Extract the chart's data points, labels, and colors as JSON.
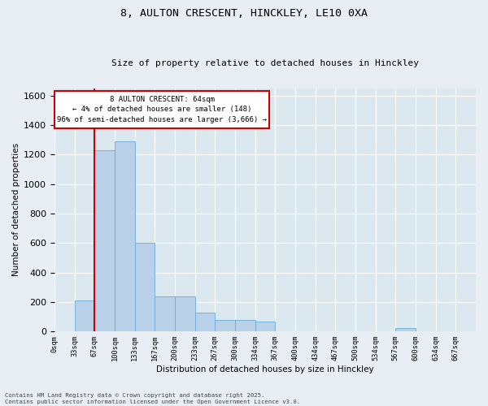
{
  "title_line1": "8, AULTON CRESCENT, HINCKLEY, LE10 0XA",
  "title_line2": "Size of property relative to detached houses in Hinckley",
  "xlabel": "Distribution of detached houses by size in Hinckley",
  "ylabel": "Number of detached properties",
  "bar_color": "#b8d0e8",
  "bar_edge_color": "#6aaad4",
  "bg_color": "#dce8f0",
  "grid_color": "#ffffff",
  "annotation_box_color": "#cc0000",
  "vline_color": "#cc0000",
  "vline_x": 2,
  "annotation_text": "8 AULTON CRESCENT: 64sqm\n← 4% of detached houses are smaller (148)\n96% of semi-detached houses are larger (3,666) →",
  "footnote": "Contains HM Land Registry data © Crown copyright and database right 2025.\nContains public sector information licensed under the Open Government Licence v3.0.",
  "bins": [
    "0sqm",
    "33sqm",
    "67sqm",
    "100sqm",
    "133sqm",
    "167sqm",
    "200sqm",
    "233sqm",
    "267sqm",
    "300sqm",
    "334sqm",
    "367sqm",
    "400sqm",
    "434sqm",
    "467sqm",
    "500sqm",
    "534sqm",
    "567sqm",
    "600sqm",
    "634sqm",
    "667sqm"
  ],
  "values": [
    0,
    210,
    1230,
    1290,
    600,
    240,
    240,
    125,
    80,
    75,
    65,
    0,
    0,
    0,
    0,
    0,
    0,
    20,
    0,
    0,
    0
  ],
  "ylim": [
    0,
    1650
  ],
  "yticks": [
    0,
    200,
    400,
    600,
    800,
    1000,
    1200,
    1400,
    1600
  ],
  "figsize": [
    6.0,
    5.0
  ],
  "dpi": 100
}
